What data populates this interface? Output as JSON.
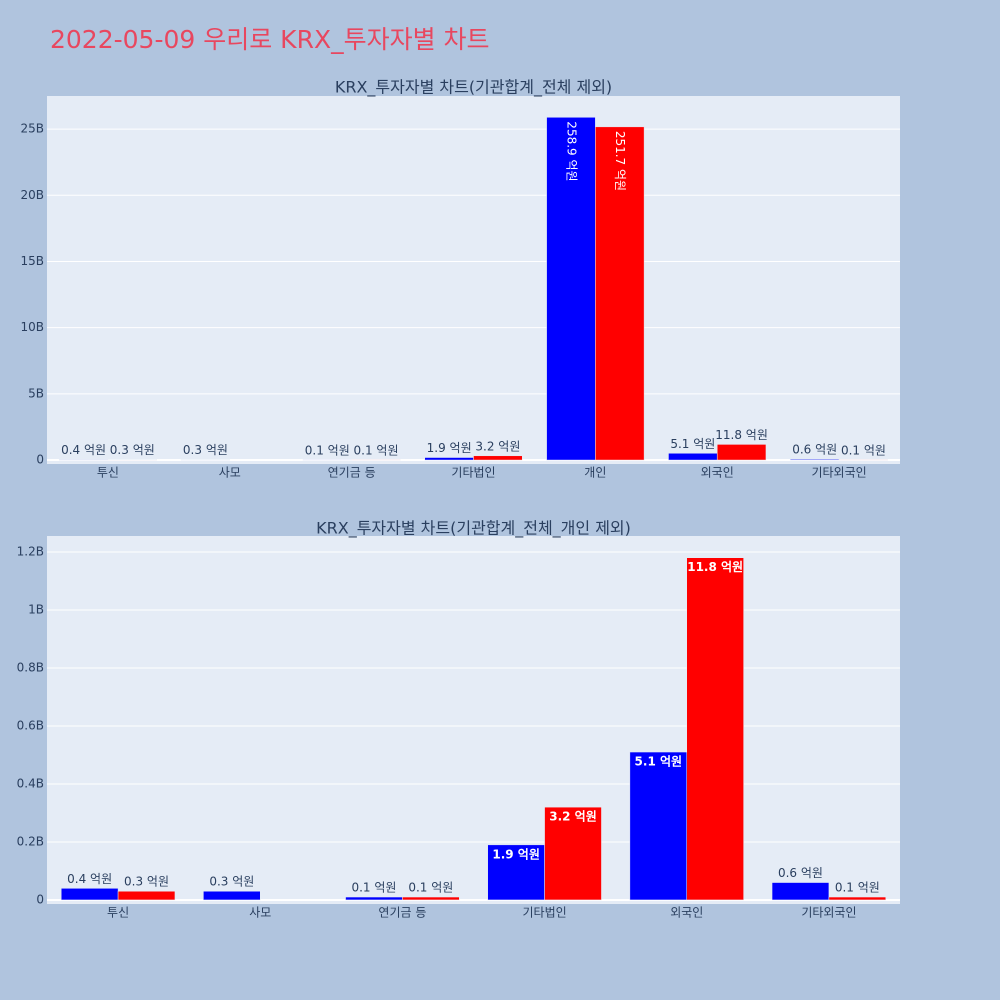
{
  "title": "2022-05-09 우리로 KRX_투자자별 차트",
  "chart_data": [
    {
      "type": "bar",
      "title": "KRX_투자자별 차트(기관합계_전체 제외)",
      "categories": [
        "투신",
        "사모",
        "연기금 등",
        "기타법인",
        "개인",
        "외국인",
        "기타외국인"
      ],
      "series": [
        {
          "color": "#0000ff",
          "values": [
            40000000,
            30000000,
            10000000,
            190000000,
            25890000000,
            510000000,
            60000000
          ],
          "value_labels": [
            "0.4 억원",
            "0.3 억원",
            "0.1 억원",
            "1.9 억원",
            "258.9 억원",
            "5.1 억원",
            "0.6 억원"
          ]
        },
        {
          "color": "#ff0000",
          "values": [
            30000000,
            null,
            10000000,
            320000000,
            25170000000,
            1180000000,
            10000000
          ],
          "value_labels": [
            "0.3 억원",
            null,
            "0.1 억원",
            "3.2 억원",
            "251.7 억원",
            "11.8 억원",
            "0.1 억원"
          ]
        }
      ],
      "ylim": [
        -300000000,
        27500000000
      ],
      "yticks": [
        0,
        {
          "value": 5000000000,
          "label": "5B"
        },
        {
          "value": 10000000000,
          "label": "10B"
        },
        {
          "value": 15000000000,
          "label": "15B"
        },
        {
          "value": 20000000000,
          "label": "20B"
        },
        {
          "value": 25000000000,
          "label": "25B"
        }
      ],
      "grid": true
    },
    {
      "type": "bar",
      "title": "KRX_투자자별 차트(기관합계_전체_개인 제외)",
      "categories": [
        "투신",
        "사모",
        "연기금 등",
        "기타법인",
        "외국인",
        "기타외국인"
      ],
      "series": [
        {
          "color": "#0000ff",
          "values": [
            40000000,
            30000000,
            10000000,
            190000000,
            510000000,
            60000000
          ],
          "value_labels": [
            "0.4 억원",
            "0.3 억원",
            "0.1 억원",
            "1.9 억원",
            "5.1 억원",
            "0.6 억원"
          ]
        },
        {
          "color": "#ff0000",
          "values": [
            30000000,
            null,
            10000000,
            320000000,
            1180000000,
            10000000
          ],
          "value_labels": [
            "0.3 억원",
            null,
            "0.1 억원",
            "3.2 억원",
            "11.8 억원",
            "0.1 억원"
          ]
        }
      ],
      "ylim": [
        -14000000,
        1255000000
      ],
      "yticks": [
        0,
        {
          "value": 200000000,
          "label": "0.2B"
        },
        {
          "value": 400000000,
          "label": "0.4B"
        },
        {
          "value": 600000000,
          "label": "0.6B"
        },
        {
          "value": 800000000,
          "label": "0.8B"
        },
        {
          "value": 1000000000,
          "label": "1B"
        },
        {
          "value": 1200000000,
          "label": "1.2B"
        }
      ],
      "grid": true
    }
  ]
}
